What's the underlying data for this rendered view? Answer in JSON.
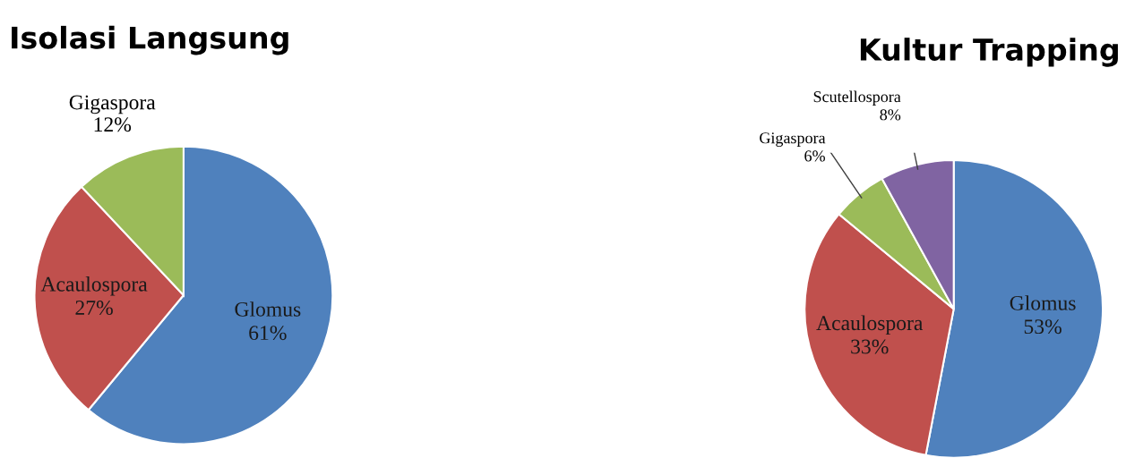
{
  "chart_data": [
    {
      "type": "pie",
      "title": "Isolasi Langsung",
      "categories": [
        "Glomus",
        "Acaulospora",
        "Gigaspora"
      ],
      "values": [
        61,
        27,
        12
      ],
      "value_labels": [
        "61%",
        "27%",
        "12%"
      ],
      "colors": [
        "#4f81bd",
        "#c0504d",
        "#9bbb59"
      ],
      "legend": false
    },
    {
      "type": "pie",
      "title": "Kultur Trapping",
      "categories": [
        "Glomus",
        "Acaulospora",
        "Gigaspora",
        "Scutellospora"
      ],
      "values": [
        53,
        33,
        6,
        8
      ],
      "value_labels": [
        "53%",
        "33%",
        "6%",
        "8%"
      ],
      "colors": [
        "#4f81bd",
        "#c0504d",
        "#9bbb59",
        "#8064a2"
      ],
      "legend": false
    }
  ]
}
